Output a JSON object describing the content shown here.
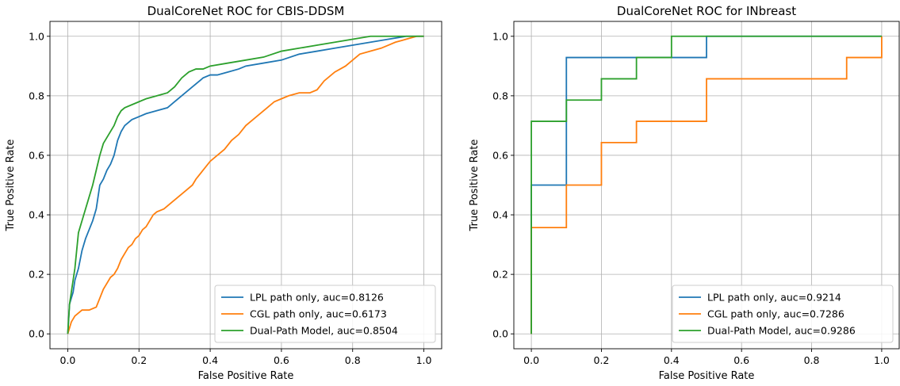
{
  "chart_data": [
    {
      "type": "line",
      "title": "DualCoreNet ROC for CBIS-DDSM",
      "xlabel": "False Positive Rate",
      "ylabel": "True Positive Rate",
      "xlim": [
        -0.05,
        1.05
      ],
      "ylim": [
        -0.05,
        1.05
      ],
      "xticks": [
        "0.0",
        "0.2",
        "0.4",
        "0.6",
        "0.8",
        "1.0"
      ],
      "yticks": [
        "0.0",
        "0.2",
        "0.4",
        "0.6",
        "0.8",
        "1.0"
      ],
      "grid": true,
      "legend_position": "bottom-right",
      "series": [
        {
          "name": "LPL path only, auc=0.8126",
          "color": "#1f77b4",
          "x": [
            0,
            0.005,
            0.01,
            0.015,
            0.02,
            0.03,
            0.04,
            0.05,
            0.06,
            0.07,
            0.08,
            0.09,
            0.1,
            0.11,
            0.12,
            0.13,
            0.14,
            0.15,
            0.16,
            0.17,
            0.18,
            0.2,
            0.22,
            0.25,
            0.28,
            0.3,
            0.32,
            0.35,
            0.38,
            0.4,
            0.42,
            0.45,
            0.48,
            0.5,
            0.55,
            0.6,
            0.65,
            0.7,
            0.75,
            0.8,
            0.85,
            0.9,
            0.95,
            1.0
          ],
          "y": [
            0,
            0.1,
            0.12,
            0.14,
            0.18,
            0.22,
            0.28,
            0.32,
            0.35,
            0.38,
            0.42,
            0.5,
            0.52,
            0.55,
            0.57,
            0.6,
            0.65,
            0.68,
            0.7,
            0.71,
            0.72,
            0.73,
            0.74,
            0.75,
            0.76,
            0.78,
            0.8,
            0.83,
            0.86,
            0.87,
            0.87,
            0.88,
            0.89,
            0.9,
            0.91,
            0.92,
            0.94,
            0.95,
            0.96,
            0.97,
            0.98,
            0.99,
            1.0,
            1.0
          ]
        },
        {
          "name": "CGL path only, auc=0.6173",
          "color": "#ff7f0e",
          "x": [
            0,
            0.005,
            0.01,
            0.02,
            0.03,
            0.04,
            0.06,
            0.08,
            0.09,
            0.1,
            0.11,
            0.12,
            0.13,
            0.14,
            0.15,
            0.16,
            0.17,
            0.18,
            0.19,
            0.2,
            0.21,
            0.22,
            0.23,
            0.24,
            0.25,
            0.27,
            0.3,
            0.33,
            0.35,
            0.36,
            0.38,
            0.4,
            0.42,
            0.44,
            0.46,
            0.48,
            0.5,
            0.52,
            0.54,
            0.56,
            0.58,
            0.6,
            0.62,
            0.65,
            0.68,
            0.7,
            0.72,
            0.75,
            0.78,
            0.8,
            0.82,
            0.85,
            0.88,
            0.9,
            0.92,
            0.95,
            0.98,
            1.0
          ],
          "y": [
            0,
            0.02,
            0.04,
            0.06,
            0.07,
            0.08,
            0.08,
            0.09,
            0.12,
            0.15,
            0.17,
            0.19,
            0.2,
            0.22,
            0.25,
            0.27,
            0.29,
            0.3,
            0.32,
            0.33,
            0.35,
            0.36,
            0.38,
            0.4,
            0.41,
            0.42,
            0.45,
            0.48,
            0.5,
            0.52,
            0.55,
            0.58,
            0.6,
            0.62,
            0.65,
            0.67,
            0.7,
            0.72,
            0.74,
            0.76,
            0.78,
            0.79,
            0.8,
            0.81,
            0.81,
            0.82,
            0.85,
            0.88,
            0.9,
            0.92,
            0.94,
            0.95,
            0.96,
            0.97,
            0.98,
            0.99,
            1.0,
            1.0
          ]
        },
        {
          "name": "Dual-Path Model, auc=0.8504",
          "color": "#2ca02c",
          "x": [
            0,
            0.005,
            0.01,
            0.015,
            0.02,
            0.025,
            0.03,
            0.04,
            0.05,
            0.06,
            0.07,
            0.08,
            0.09,
            0.1,
            0.11,
            0.12,
            0.13,
            0.14,
            0.15,
            0.16,
            0.18,
            0.2,
            0.22,
            0.25,
            0.28,
            0.3,
            0.32,
            0.34,
            0.36,
            0.38,
            0.4,
            0.45,
            0.5,
            0.55,
            0.6,
            0.65,
            0.7,
            0.75,
            0.8,
            0.85,
            0.9,
            0.95,
            1.0
          ],
          "y": [
            0,
            0.1,
            0.14,
            0.18,
            0.22,
            0.28,
            0.34,
            0.38,
            0.42,
            0.46,
            0.5,
            0.55,
            0.6,
            0.64,
            0.66,
            0.68,
            0.7,
            0.73,
            0.75,
            0.76,
            0.77,
            0.78,
            0.79,
            0.8,
            0.81,
            0.83,
            0.86,
            0.88,
            0.89,
            0.89,
            0.9,
            0.91,
            0.92,
            0.93,
            0.95,
            0.96,
            0.97,
            0.98,
            0.99,
            1.0,
            1.0,
            1.0,
            1.0
          ]
        }
      ]
    },
    {
      "type": "line",
      "title": "DualCoreNet ROC for INbreast",
      "xlabel": "False Positive Rate",
      "ylabel": "True Positive Rate",
      "xlim": [
        -0.05,
        1.05
      ],
      "ylim": [
        -0.05,
        1.05
      ],
      "xticks": [
        "0.0",
        "0.2",
        "0.4",
        "0.6",
        "0.8",
        "1.0"
      ],
      "yticks": [
        "0.0",
        "0.2",
        "0.4",
        "0.6",
        "0.8",
        "1.0"
      ],
      "grid": true,
      "legend_position": "bottom-right",
      "series": [
        {
          "name": "LPL path only, auc=0.9214",
          "color": "#1f77b4",
          "x": [
            0,
            0,
            0.1,
            0.1,
            0.5,
            0.5,
            1.0
          ],
          "y": [
            0,
            0.5,
            0.5,
            0.9286,
            0.9286,
            1.0,
            1.0
          ]
        },
        {
          "name": "CGL path only, auc=0.7286",
          "color": "#ff7f0e",
          "x": [
            0,
            0,
            0.1,
            0.1,
            0.2,
            0.2,
            0.3,
            0.3,
            0.5,
            0.5,
            0.9,
            0.9,
            1.0,
            1.0
          ],
          "y": [
            0,
            0.3571,
            0.3571,
            0.5,
            0.5,
            0.6429,
            0.6429,
            0.7143,
            0.7143,
            0.8571,
            0.8571,
            0.9286,
            0.9286,
            1.0
          ]
        },
        {
          "name": "Dual-Path Model, auc=0.9286",
          "color": "#2ca02c",
          "x": [
            0,
            0,
            0.1,
            0.1,
            0.2,
            0.2,
            0.3,
            0.3,
            0.4,
            0.4,
            1.0
          ],
          "y": [
            0,
            0.7143,
            0.7143,
            0.7857,
            0.7857,
            0.8571,
            0.8571,
            0.9286,
            0.9286,
            1.0,
            1.0
          ]
        }
      ]
    }
  ]
}
